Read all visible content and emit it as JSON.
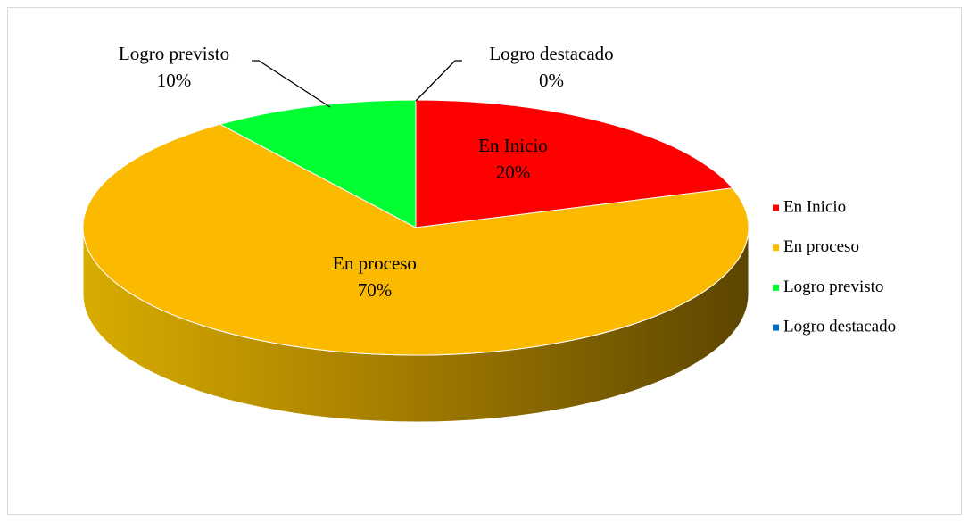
{
  "chart_data": {
    "type": "pie",
    "three_d": true,
    "categories": [
      "En Inicio",
      "En proceso",
      "Logro previsto",
      "Logro destacado"
    ],
    "values": [
      20,
      70,
      10,
      0
    ],
    "value_labels": [
      "20%",
      "70%",
      "10%",
      "0%"
    ],
    "colors": [
      "#ff0000",
      "#fbb900",
      "#00ff33",
      "#0070c0"
    ],
    "legend": "right"
  }
}
